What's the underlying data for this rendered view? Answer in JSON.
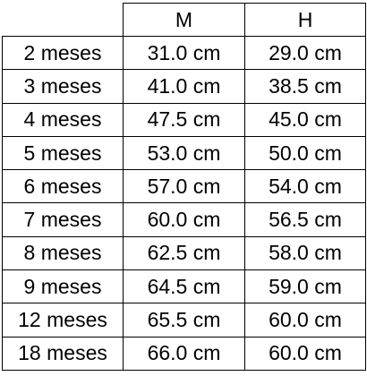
{
  "table": {
    "headers": [
      "",
      "M",
      "H"
    ],
    "rows": [
      [
        "2 meses",
        "31.0 cm",
        "29.0 cm"
      ],
      [
        "3 meses",
        "41.0 cm",
        "38.5 cm"
      ],
      [
        "4 meses",
        "47.5 cm",
        "45.0 cm"
      ],
      [
        "5 meses",
        "53.0 cm",
        "50.0 cm"
      ],
      [
        "6 meses",
        "57.0 cm",
        "54.0 cm"
      ],
      [
        "7 meses",
        "60.0 cm",
        "56.5 cm"
      ],
      [
        "8 meses",
        "62.5 cm",
        "58.0 cm"
      ],
      [
        "9 meses",
        "64.5 cm",
        "59.0 cm"
      ],
      [
        "12 meses",
        "65.5 cm",
        "60.0 cm"
      ],
      [
        "18 meses",
        "66.0 cm",
        "60.0 cm"
      ]
    ]
  }
}
